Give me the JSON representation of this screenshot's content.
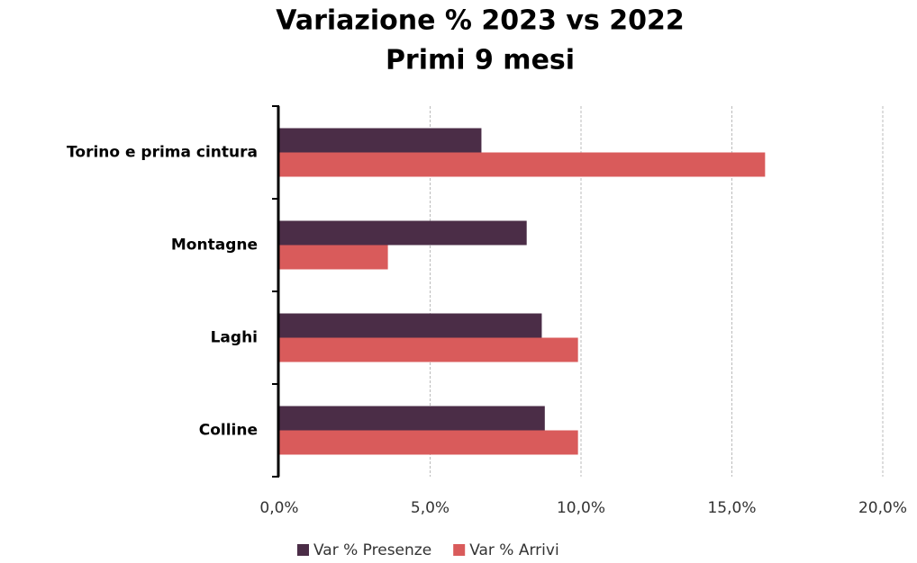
{
  "chart_data": {
    "type": "hbar",
    "title": "Variazione % 2023 vs 2022",
    "subtitle": "Primi 9 mesi",
    "categories": [
      "Torino e prima cintura",
      "Montagne",
      "Laghi",
      "Colline"
    ],
    "series": [
      {
        "name": "Var % Presenze",
        "color": "#4b2d47",
        "values": [
          6.7,
          8.2,
          8.7,
          8.8
        ]
      },
      {
        "name": "Var % Arrivi",
        "color": "#d95b5b",
        "values": [
          16.1,
          3.6,
          9.9,
          9.9
        ]
      }
    ],
    "xlim": [
      0,
      20
    ],
    "xticks": [
      {
        "value": 0,
        "label": "0,0%"
      },
      {
        "value": 5,
        "label": "5,0%"
      },
      {
        "value": 10,
        "label": "10,0%"
      },
      {
        "value": 15,
        "label": "15,0%"
      },
      {
        "value": 20,
        "label": "20,0%"
      }
    ],
    "grid": true
  }
}
